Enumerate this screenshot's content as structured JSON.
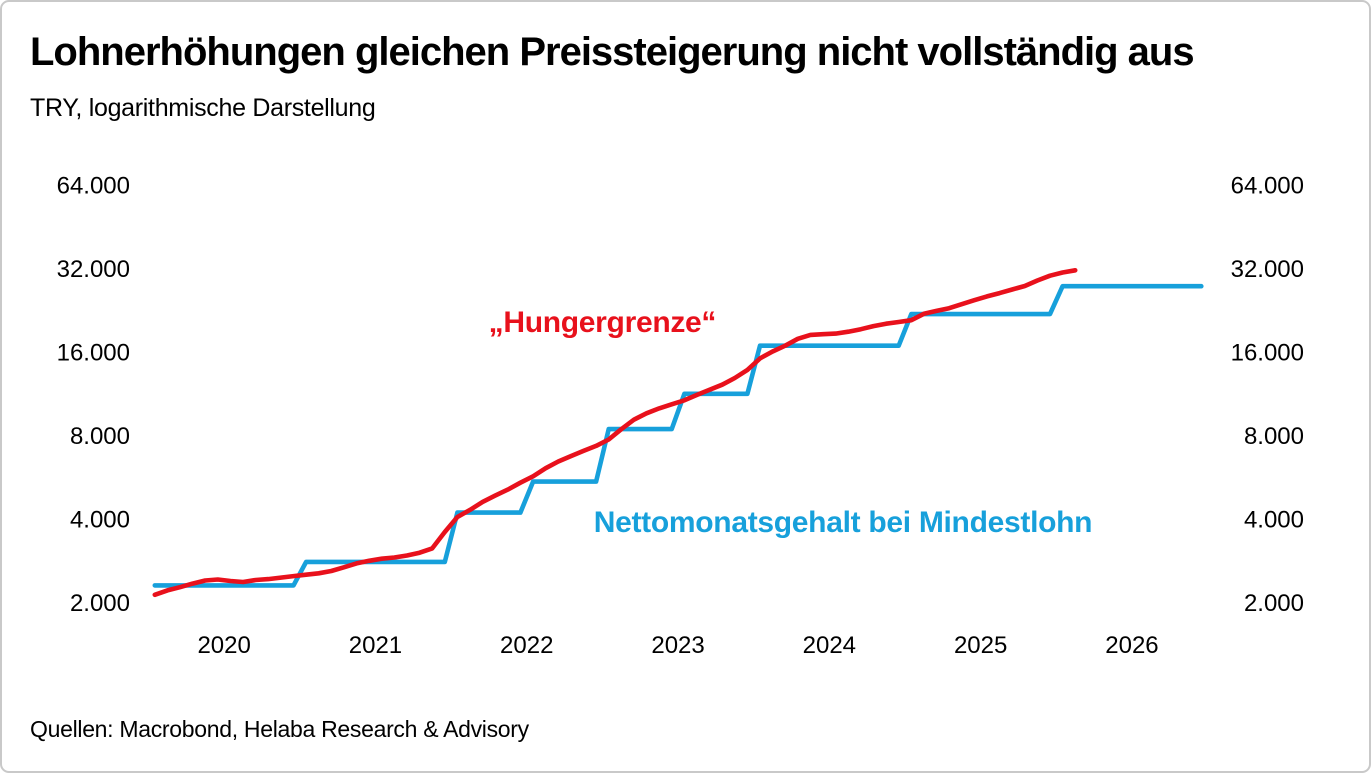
{
  "header": {
    "title": "Lohnerhöhungen gleichen Preissteigerung nicht vollständig aus",
    "subtitle": "TRY, logarithmische Darstellung"
  },
  "footer": {
    "source": "Quellen: Macrobond, Helaba Research & Advisory"
  },
  "colors": {
    "red": "#e8111c",
    "blue": "#17a0db",
    "text": "#000000",
    "border": "#c9c9c9",
    "background": "#ffffff"
  },
  "chart_data": {
    "type": "line",
    "title": "Lohnerhöhungen gleichen Preissteigerung nicht vollständig aus",
    "subtitle": "TRY, logarithmische Darstellung",
    "unit": "TRY",
    "y_scale": "log2",
    "grid": false,
    "legend_position": "inline-annotations",
    "x_start": {
      "year": 2020,
      "month": 1
    },
    "x_axis": {
      "tick_labels": [
        "2020",
        "2021",
        "2022",
        "2023",
        "2024",
        "2025",
        "2026"
      ],
      "tick_years": [
        2020,
        2021,
        2022,
        2023,
        2024,
        2025,
        2026
      ]
    },
    "y_axis": {
      "ticks": [
        64000,
        32000,
        16000,
        8000,
        4000,
        2000
      ],
      "tick_labels": [
        "64.000",
        "32.000",
        "16.000",
        "8.000",
        "4.000",
        "2.000"
      ],
      "range": [
        1800,
        80000
      ],
      "sides": [
        "left",
        "right"
      ]
    },
    "series": [
      {
        "name": "Nettomonatsgehalt bei Mindestlohn",
        "color": "#17a0db",
        "values": [
          2324,
          2324,
          2324,
          2324,
          2324,
          2324,
          2324,
          2324,
          2324,
          2324,
          2324,
          2324,
          2826,
          2826,
          2826,
          2826,
          2826,
          2826,
          2826,
          2826,
          2826,
          2826,
          2826,
          2826,
          4253,
          4253,
          4253,
          4253,
          4253,
          4253,
          5500,
          5500,
          5500,
          5500,
          5500,
          5500,
          8507,
          8507,
          8507,
          8507,
          8507,
          8507,
          11402,
          11402,
          11402,
          11402,
          11402,
          11402,
          17002,
          17002,
          17002,
          17002,
          17002,
          17002,
          17002,
          17002,
          17002,
          17002,
          17002,
          17002,
          22105,
          22105,
          22105,
          22105,
          22105,
          22105,
          22105,
          22105,
          22105,
          22105,
          22105,
          22105,
          27850,
          27850,
          27850,
          27850,
          27850,
          27850,
          27850,
          27850,
          27850,
          27850,
          27850,
          27850
        ]
      },
      {
        "name": "„Hungergrenze“",
        "color": "#e8111c",
        "values": [
          2150,
          2230,
          2290,
          2360,
          2420,
          2440,
          2410,
          2390,
          2430,
          2450,
          2480,
          2510,
          2540,
          2570,
          2620,
          2700,
          2790,
          2850,
          2900,
          2930,
          2980,
          3050,
          3160,
          3620,
          4100,
          4350,
          4650,
          4900,
          5150,
          5450,
          5750,
          6150,
          6500,
          6800,
          7100,
          7400,
          7800,
          8500,
          9200,
          9700,
          10100,
          10450,
          10800,
          11300,
          11800,
          12300,
          13000,
          13900,
          15300,
          16200,
          17000,
          18000,
          18600,
          18700,
          18800,
          19100,
          19500,
          20000,
          20400,
          20700,
          21000,
          22150,
          22700,
          23200,
          24000,
          24800,
          25600,
          26300,
          27100,
          27900,
          29200,
          30400,
          31200,
          31800
        ]
      }
    ],
    "annotations": [
      {
        "text": "„Hungergrenze“",
        "x_year": 2023.0,
        "y_value": 19050,
        "color": "#e8111c"
      },
      {
        "text": "Nettomonatsgehalt bei Mindestlohn",
        "x_year": 2024.59,
        "y_value": 3620,
        "color": "#17a0db"
      }
    ]
  }
}
